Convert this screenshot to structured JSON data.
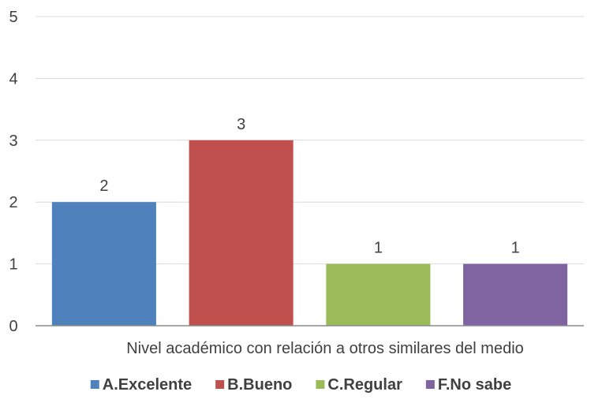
{
  "chart_data": {
    "type": "bar",
    "title": "",
    "xlabel": "",
    "ylabel": "",
    "category_label": "Nivel académico con relación a otros similares del medio",
    "categories": [
      "A.Excelente",
      "B.Bueno",
      "C.Regular",
      "F.No sabe"
    ],
    "values": [
      2,
      3,
      1,
      1
    ],
    "colors": [
      "#4f81bd",
      "#c0504d",
      "#9bbb59",
      "#8064a2"
    ],
    "ylim": [
      0,
      5
    ],
    "yticks": [
      0,
      1,
      2,
      3,
      4,
      5
    ],
    "grid": true,
    "legend": "bottom",
    "data_labels": true,
    "gridline_color": "#d9d9d9",
    "axis_color": "#8c8c8c"
  }
}
